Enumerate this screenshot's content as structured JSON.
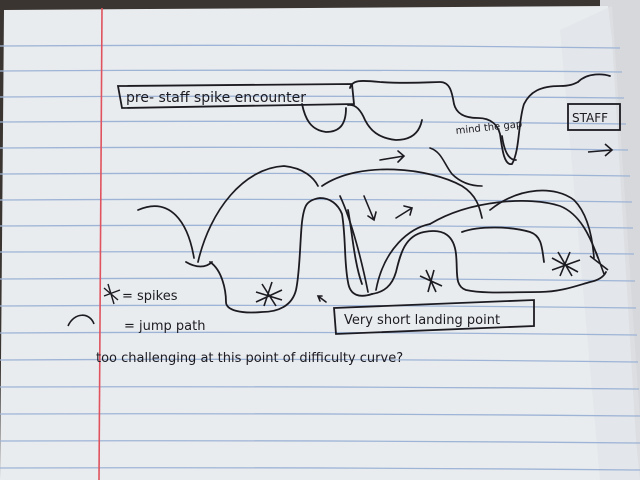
{
  "notebook": {
    "colors": {
      "paper": "#e9ecef",
      "rule_line": "#9eb4d6",
      "margin_line": "#e0525d",
      "ink": "#1c1b22",
      "desk": "#3a3531"
    }
  },
  "sketch": {
    "title": "pre- staff spike encounter",
    "staff_label": "STAFF",
    "gap_note": "mind the gap",
    "landing_note": "Very short landing point",
    "legend": {
      "spikes": "= spikes",
      "jump_path": "= jump path"
    },
    "question": "too challenging at this point of difficulty curve?"
  }
}
